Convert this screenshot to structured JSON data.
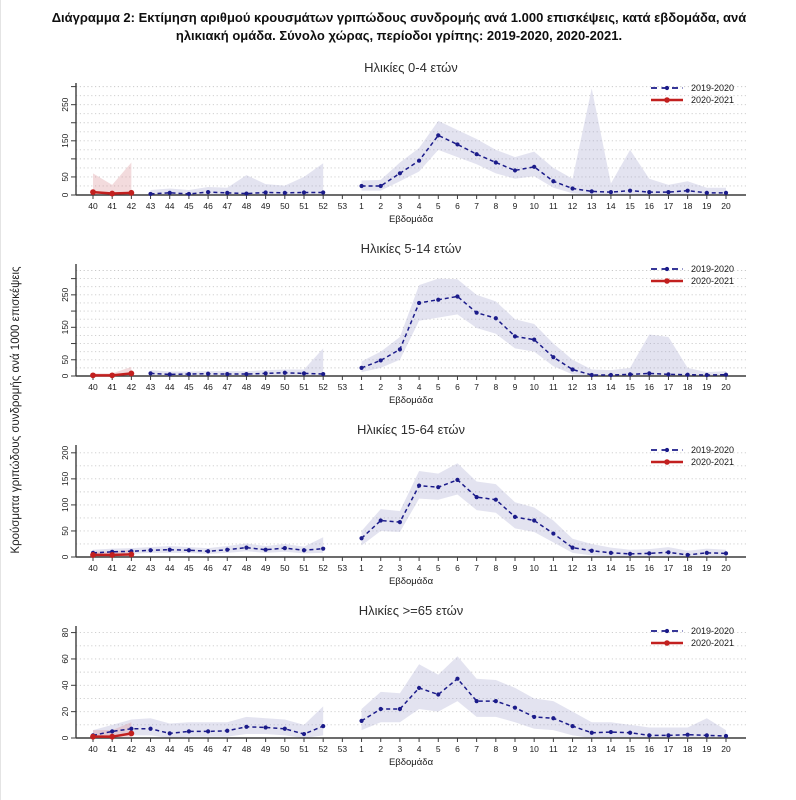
{
  "header": {
    "line1": "Διάγραμμα 2: Εκτίμηση αριθμού κρουσμάτων γριπώδους συνδρομής ανά 1.000 επισκέψεις, κατά εβδομάδα, ανά",
    "line2": "ηλικιακή ομάδα. Σύνολο χώρας, περίοδοι γρίπης:  2019-2020, 2020-2021."
  },
  "shared": {
    "ylabel": "Κρούσματα γριπώδους συνδρομής ανά 1000 επισκέψεις",
    "xlabel": "Εβδομάδα",
    "legend": [
      {
        "label": "2019-2020",
        "style": "dashed",
        "color": "blue"
      },
      {
        "label": "2020-2021",
        "style": "solid",
        "color": "red"
      }
    ],
    "colors": {
      "blue": "#1b1b8a",
      "red": "#c2201f",
      "blue_band": "#9b9bc8",
      "red_band": "#d98f96",
      "grid": "#c9c9c9",
      "axis": "#3c3c3c",
      "text": "#1a1a1a"
    }
  },
  "chart_data": [
    {
      "type": "line",
      "title": "Ηλικίες 0-4 ετών",
      "xlabel": "Εβδομάδα",
      "ylim": [
        0,
        310
      ],
      "ytick_step": 50,
      "grid_step": 25,
      "yticks_labeled": [
        0,
        50,
        150,
        250
      ],
      "x_categories": [
        "40",
        "41",
        "42",
        "43",
        "44",
        "45",
        "46",
        "47",
        "48",
        "49",
        "50",
        "51",
        "52",
        "53",
        "1",
        "2",
        "3",
        "4",
        "5",
        "6",
        "7",
        "8",
        "9",
        "10",
        "11",
        "12",
        "13",
        "14",
        "15",
        "16",
        "17",
        "18",
        "19",
        "20"
      ],
      "series": [
        {
          "name": "2019-2020",
          "color": "blue",
          "band_color": "blue_band",
          "band_opacity": 0.28,
          "style": "dashed",
          "segments": [
            {
              "x": [
                "43",
                "44",
                "45",
                "46",
                "47",
                "48",
                "49",
                "50",
                "51",
                "52"
              ],
              "y": [
                3,
                6,
                3,
                8,
                6,
                4,
                7,
                6,
                7,
                7
              ],
              "upper": [
                14,
                18,
                14,
                22,
                20,
                55,
                30,
                26,
                50,
                88
              ],
              "lower": [
                0,
                0,
                0,
                0,
                0,
                0,
                0,
                0,
                0,
                0
              ]
            },
            {
              "x": [
                "1",
                "2",
                "3",
                "4",
                "5",
                "6",
                "7",
                "8",
                "9",
                "10",
                "11",
                "12",
                "13",
                "14",
                "15",
                "16",
                "17",
                "18",
                "19",
                "20"
              ],
              "y": [
                25,
                25,
                60,
                95,
                165,
                140,
                113,
                90,
                68,
                78,
                38,
                18,
                10,
                8,
                12,
                8,
                8,
                12,
                6,
                6
              ],
              "upper": [
                40,
                42,
                90,
                130,
                205,
                180,
                155,
                125,
                105,
                120,
                75,
                45,
                295,
                32,
                125,
                45,
                28,
                38,
                20,
                20
              ],
              "lower": [
                12,
                12,
                38,
                65,
                125,
                105,
                85,
                60,
                45,
                52,
                20,
                5,
                0,
                0,
                0,
                0,
                0,
                0,
                0,
                0
              ]
            }
          ]
        },
        {
          "name": "2020-2021",
          "color": "red",
          "band_color": "red_band",
          "band_opacity": 0.32,
          "style": "solid",
          "segments": [
            {
              "x": [
                "40",
                "41",
                "42"
              ],
              "y": [
                8,
                4,
                6
              ],
              "upper": [
                60,
                28,
                90
              ],
              "lower": [
                1,
                0,
                1
              ]
            }
          ]
        }
      ]
    },
    {
      "type": "line",
      "title": "Ηλικίες 5-14 ετών",
      "xlabel": "Εβδομάδα",
      "ylim": [
        0,
        345
      ],
      "ytick_step": 50,
      "grid_step": 25,
      "yticks_labeled": [
        0,
        50,
        150,
        250
      ],
      "x_categories": [
        "40",
        "41",
        "42",
        "43",
        "44",
        "45",
        "46",
        "47",
        "48",
        "49",
        "50",
        "51",
        "52",
        "53",
        "1",
        "2",
        "3",
        "4",
        "5",
        "6",
        "7",
        "8",
        "9",
        "10",
        "11",
        "12",
        "13",
        "14",
        "15",
        "16",
        "17",
        "18",
        "19",
        "20"
      ],
      "series": [
        {
          "name": "2019-2020",
          "color": "blue",
          "band_color": "blue_band",
          "band_opacity": 0.28,
          "style": "dashed",
          "segments": [
            {
              "x": [
                "43",
                "44",
                "45",
                "46",
                "47",
                "48",
                "49",
                "50",
                "51",
                "52"
              ],
              "y": [
                8,
                5,
                6,
                7,
                6,
                6,
                8,
                10,
                8,
                6
              ],
              "upper": [
                18,
                14,
                14,
                15,
                15,
                15,
                18,
                20,
                20,
                85
              ],
              "lower": [
                0,
                0,
                0,
                0,
                0,
                0,
                0,
                0,
                0,
                0
              ]
            },
            {
              "x": [
                "1",
                "2",
                "3",
                "4",
                "5",
                "6",
                "7",
                "8",
                "9",
                "10",
                "11",
                "12",
                "13",
                "14",
                "15",
                "16",
                "17",
                "18",
                "19",
                "20"
              ],
              "y": [
                25,
                48,
                82,
                225,
                235,
                245,
                195,
                178,
                122,
                112,
                58,
                20,
                3,
                3,
                5,
                8,
                5,
                4,
                3,
                4
              ],
              "upper": [
                45,
                75,
                120,
                280,
                300,
                298,
                250,
                230,
                175,
                160,
                100,
                50,
                20,
                18,
                25,
                128,
                120,
                25,
                12,
                15
              ],
              "lower": [
                12,
                25,
                50,
                170,
                180,
                190,
                148,
                130,
                85,
                75,
                30,
                5,
                0,
                0,
                0,
                0,
                0,
                0,
                0,
                0
              ]
            }
          ]
        },
        {
          "name": "2020-2021",
          "color": "red",
          "band_color": "red_band",
          "band_opacity": 0.32,
          "style": "solid",
          "segments": [
            {
              "x": [
                "40",
                "41",
                "42"
              ],
              "y": [
                2,
                2,
                8
              ],
              "upper": [
                8,
                8,
                28
              ],
              "lower": [
                0,
                0,
                1
              ]
            }
          ]
        }
      ]
    },
    {
      "type": "line",
      "title": "Ηλικίες 15-64 ετών",
      "xlabel": "Εβδομάδα",
      "ylim": [
        0,
        215
      ],
      "ytick_step": 50,
      "grid_step": 25,
      "yticks_labeled": [
        0,
        50,
        100,
        150,
        200
      ],
      "x_categories": [
        "40",
        "41",
        "42",
        "43",
        "44",
        "45",
        "46",
        "47",
        "48",
        "49",
        "50",
        "51",
        "52",
        "53",
        "1",
        "2",
        "3",
        "4",
        "5",
        "6",
        "7",
        "8",
        "9",
        "10",
        "11",
        "12",
        "13",
        "14",
        "15",
        "16",
        "17",
        "18",
        "19",
        "20"
      ],
      "series": [
        {
          "name": "2019-2020",
          "color": "blue",
          "band_color": "blue_band",
          "band_opacity": 0.28,
          "style": "dashed",
          "segments": [
            {
              "x": [
                "40",
                "41",
                "42",
                "43",
                "44",
                "45",
                "46",
                "47",
                "48",
                "49",
                "50",
                "51",
                "52"
              ],
              "y": [
                8,
                10,
                11,
                13,
                14,
                13,
                11,
                14,
                18,
                14,
                17,
                13,
                16
              ],
              "upper": [
                14,
                16,
                17,
                19,
                21,
                19,
                17,
                21,
                26,
                21,
                25,
                20,
                38
              ],
              "lower": [
                3,
                5,
                6,
                8,
                8,
                8,
                6,
                8,
                11,
                8,
                10,
                7,
                8
              ]
            },
            {
              "x": [
                "1",
                "2",
                "3",
                "4",
                "5",
                "6",
                "7",
                "8",
                "9",
                "10",
                "11",
                "12",
                "13",
                "14",
                "15",
                "16",
                "17",
                "18",
                "19",
                "20"
              ],
              "y": [
                36,
                70,
                67,
                137,
                134,
                148,
                115,
                110,
                77,
                70,
                45,
                18,
                12,
                8,
                6,
                7,
                9,
                4,
                8,
                7
              ],
              "upper": [
                50,
                92,
                88,
                165,
                160,
                180,
                145,
                140,
                105,
                95,
                70,
                35,
                25,
                18,
                14,
                15,
                19,
                12,
                16,
                14
              ],
              "lower": [
                22,
                50,
                48,
                112,
                110,
                120,
                90,
                85,
                55,
                48,
                28,
                8,
                3,
                1,
                0,
                1,
                2,
                0,
                2,
                1
              ]
            }
          ]
        },
        {
          "name": "2020-2021",
          "color": "red",
          "band_color": "red_band",
          "band_opacity": 0.32,
          "style": "solid",
          "segments": [
            {
              "x": [
                "40",
                "41",
                "42"
              ],
              "y": [
                4,
                4,
                5
              ],
              "upper": [
                10,
                10,
                14
              ],
              "lower": [
                0,
                0,
                0
              ]
            }
          ]
        }
      ]
    },
    {
      "type": "line",
      "title": "Ηλικίες >=65 ετών",
      "xlabel": "Εβδομάδα",
      "ylim": [
        0,
        85
      ],
      "ytick_step": 20,
      "grid_step": 10,
      "yticks_labeled": [
        0,
        20,
        40,
        60,
        80
      ],
      "x_categories": [
        "40",
        "41",
        "42",
        "43",
        "44",
        "45",
        "46",
        "47",
        "48",
        "49",
        "50",
        "51",
        "52",
        "53",
        "1",
        "2",
        "3",
        "4",
        "5",
        "6",
        "7",
        "8",
        "9",
        "10",
        "11",
        "12",
        "13",
        "14",
        "15",
        "16",
        "17",
        "18",
        "19",
        "20"
      ],
      "series": [
        {
          "name": "2019-2020",
          "color": "blue",
          "band_color": "blue_band",
          "band_opacity": 0.28,
          "style": "dashed",
          "segments": [
            {
              "x": [
                "40",
                "41",
                "42",
                "43",
                "44",
                "45",
                "46",
                "47",
                "48",
                "49",
                "50",
                "51",
                "52"
              ],
              "y": [
                2,
                5,
                7,
                7,
                3.5,
                5,
                5,
                5.5,
                8.5,
                8,
                7,
                3,
                9
              ],
              "upper": [
                6,
                10,
                14,
                15,
                11,
                12,
                12,
                12,
                16,
                15,
                14,
                10,
                24
              ],
              "lower": [
                0,
                1,
                2,
                2,
                0,
                1,
                1,
                1,
                3,
                3,
                2,
                0,
                2
              ]
            },
            {
              "x": [
                "1",
                "2",
                "3",
                "4",
                "5",
                "6",
                "7",
                "8",
                "9",
                "10",
                "11",
                "12",
                "13",
                "14",
                "15",
                "16",
                "17",
                "18",
                "19",
                "20"
              ],
              "y": [
                13,
                22,
                22,
                38,
                33,
                45,
                28,
                28,
                23,
                16,
                15,
                9,
                4,
                4.5,
                4,
                2,
                2,
                2.5,
                2,
                1.5
              ],
              "upper": [
                22,
                35,
                34,
                56,
                48,
                62,
                45,
                44,
                38,
                30,
                28,
                20,
                12,
                12,
                10,
                8,
                8,
                8,
                15,
                6
              ],
              "lower": [
                6,
                12,
                12,
                22,
                20,
                28,
                16,
                16,
                12,
                7,
                6,
                2,
                0,
                0,
                0,
                0,
                0,
                0,
                0,
                0
              ]
            }
          ]
        },
        {
          "name": "2020-2021",
          "color": "red",
          "band_color": "red_band",
          "band_opacity": 0.32,
          "style": "solid",
          "segments": [
            {
              "x": [
                "40",
                "41",
                "42"
              ],
              "y": [
                1,
                1,
                3.5
              ],
              "upper": [
                6,
                6,
                12
              ],
              "lower": [
                0,
                0,
                0
              ]
            }
          ]
        }
      ]
    }
  ]
}
